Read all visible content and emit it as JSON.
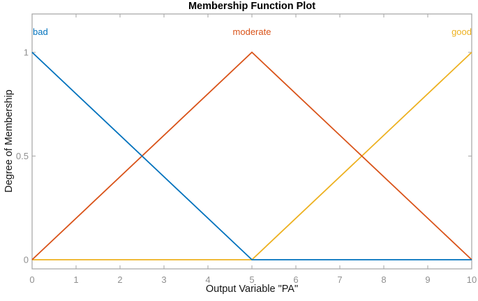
{
  "figure": {
    "background": "#ffffff"
  },
  "chart_data": {
    "type": "line",
    "title": "Membership Function Plot",
    "xlabel": "Output Variable \"PA\"",
    "ylabel": "Degree of Membership",
    "xlim": [
      0,
      10
    ],
    "ylim": [
      -0.044,
      1.185
    ],
    "xticks": {
      "values": [
        0,
        1,
        2,
        3,
        4,
        5,
        6,
        7,
        8,
        9,
        10
      ],
      "labels": [
        "0",
        "1",
        "2",
        "3",
        "4",
        "5",
        "6",
        "7",
        "8",
        "9",
        "10"
      ]
    },
    "yticks": {
      "values": [
        0,
        0.5,
        1
      ],
      "labels": [
        "0",
        "0.5",
        "1"
      ]
    },
    "grid": false,
    "box": true,
    "tick_direction": "in",
    "legend_position": "inside-top",
    "axis_color": "#a3a3a3",
    "tick_label_color": "#8f8f8f",
    "series": [
      {
        "name": "bad",
        "color": "#0072bd",
        "points": [
          [
            0,
            1
          ],
          [
            5,
            0
          ],
          [
            10,
            0
          ]
        ]
      },
      {
        "name": "moderate",
        "color": "#d95319",
        "points": [
          [
            0,
            0
          ],
          [
            5,
            1
          ],
          [
            10,
            0
          ]
        ]
      },
      {
        "name": "good",
        "color": "#edb120",
        "points": [
          [
            0,
            0
          ],
          [
            5,
            0
          ],
          [
            10,
            1
          ]
        ]
      }
    ]
  }
}
